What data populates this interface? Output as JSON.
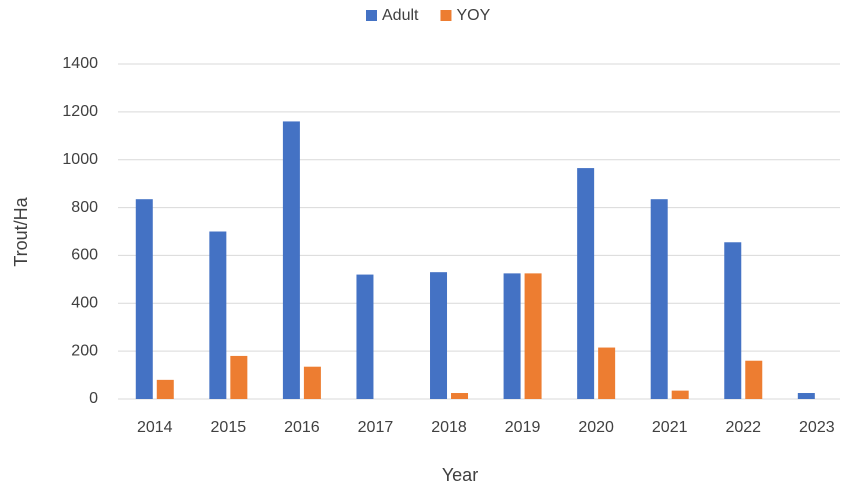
{
  "chart_data": {
    "type": "bar",
    "x_label": "Year",
    "y_label": "Trout/Ha",
    "categories": [
      "2014",
      "2015",
      "2016",
      "2017",
      "2018",
      "2019",
      "2020",
      "2021",
      "2022",
      "2023"
    ],
    "series": [
      {
        "name": "Adult",
        "color": "#4472c4",
        "values": [
          835,
          700,
          1160,
          520,
          530,
          525,
          965,
          835,
          655,
          25
        ]
      },
      {
        "name": "YOY",
        "color": "#ed7d31",
        "values": [
          80,
          180,
          135,
          0,
          25,
          525,
          215,
          35,
          160,
          0
        ]
      }
    ],
    "ylim": [
      0,
      1400
    ],
    "yticks": [
      0,
      200,
      400,
      600,
      800,
      1000,
      1200,
      1400
    ],
    "grid": true,
    "legend": "top"
  }
}
